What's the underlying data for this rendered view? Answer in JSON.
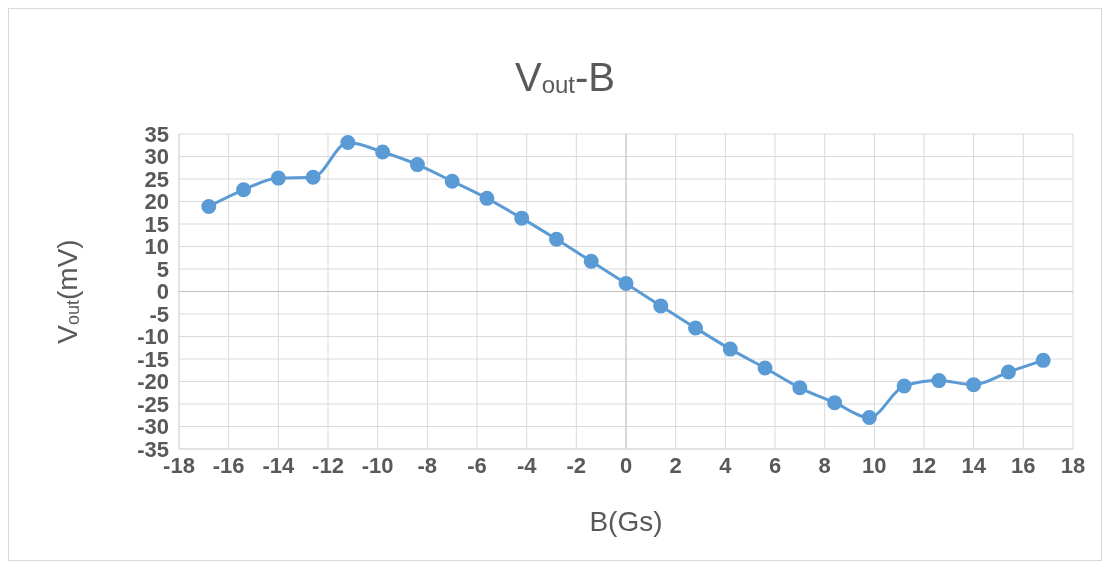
{
  "chart_data": {
    "type": "line",
    "title": "V$_{out}$-B",
    "xlabel": "B(Gs)",
    "ylabel": "V$_{out}$(mV)",
    "x": [
      -16.8,
      -15.4,
      -14.0,
      -12.6,
      -11.2,
      -9.8,
      -8.4,
      -7.0,
      -5.6,
      -4.2,
      -2.8,
      -1.4,
      0,
      1.4,
      2.8,
      4.2,
      5.6,
      7.0,
      8.4,
      9.8,
      11.2,
      12.6,
      14.0,
      15.4,
      16.8
    ],
    "series": [
      {
        "color": "#5b9bd5",
        "values": [
          18.9,
          22.6,
          25.2,
          25.4,
          33.1,
          31.0,
          28.2,
          24.5,
          20.7,
          16.3,
          11.6,
          6.7,
          1.8,
          -3.2,
          -8.1,
          -12.8,
          -17.0,
          -21.4,
          -24.7,
          -28.0,
          -21.0,
          -19.8,
          -20.7,
          -17.9,
          -15.3
        ]
      }
    ],
    "xlim": [
      -18,
      18
    ],
    "xticks": [
      -18,
      -16,
      -14,
      -12,
      -10,
      -8,
      -6,
      -4,
      -2,
      0,
      2,
      4,
      6,
      8,
      10,
      12,
      14,
      16,
      18
    ],
    "ylim": [
      -35,
      35
    ],
    "yticks": [
      -35,
      -30,
      -25,
      -20,
      -15,
      -10,
      -5,
      0,
      5,
      10,
      15,
      20,
      25,
      30,
      35
    ],
    "grid": true,
    "marker": "circle",
    "line_style": "solid",
    "legend": false
  }
}
